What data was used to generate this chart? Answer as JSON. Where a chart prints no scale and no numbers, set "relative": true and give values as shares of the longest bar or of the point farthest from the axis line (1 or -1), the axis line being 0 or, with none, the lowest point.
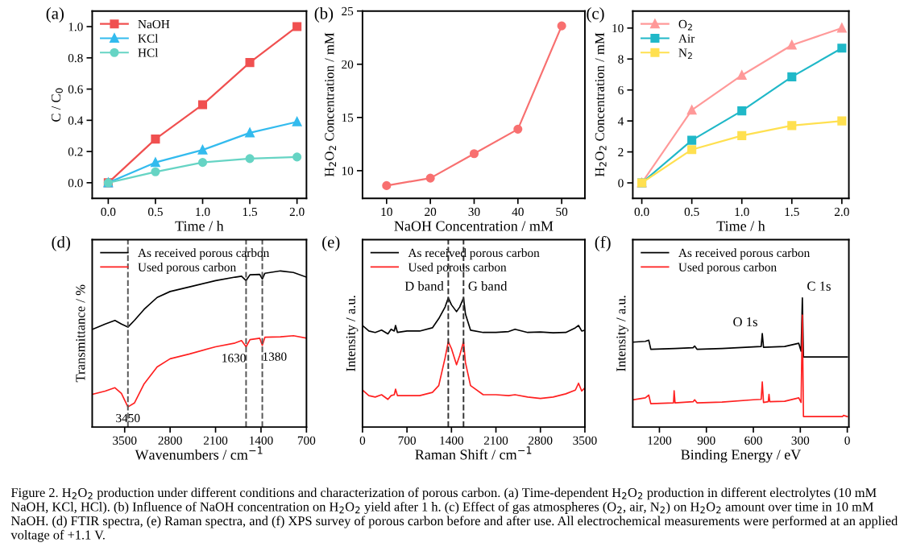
{
  "chart_data": [
    {
      "type": "line",
      "title": "(a)",
      "xlabel": "Time / h",
      "ylabel": "C / C$_{0}$",
      "x": [
        0.0,
        0.5,
        1.0,
        1.5,
        2.0
      ],
      "xlim": [
        -0.17,
        2.1
      ],
      "xticks": [
        {
          "value": 0,
          "label": "0.0"
        },
        0.5,
        {
          "value": 1,
          "label": "1.0"
        },
        1.5,
        {
          "value": 2,
          "label": "2.0"
        }
      ],
      "ylim": [
        -0.1,
        1.1
      ],
      "yticks": [
        {
          "value": 0,
          "label": "0.0"
        },
        0.2,
        0.4,
        0.6,
        0.8,
        {
          "value": 1,
          "label": "1.0"
        }
      ],
      "legend": "top left",
      "series": [
        {
          "name": "NaOH",
          "color": "#f05050",
          "marker": "square",
          "values": [
            0.0,
            0.28,
            0.5,
            0.77,
            1.0
          ]
        },
        {
          "name": "KCl",
          "color": "#33bbee",
          "marker": "triangle",
          "values": [
            0.0,
            0.13,
            0.21,
            0.32,
            0.39
          ]
        },
        {
          "name": "HCl",
          "color": "#66d4c4",
          "marker": "circle",
          "values": [
            0.0,
            0.07,
            0.13,
            0.155,
            0.165
          ]
        }
      ]
    },
    {
      "type": "line",
      "title": "(b)",
      "xlabel": "NaOH Concentration / mM",
      "ylabel": "H$_{2}$O$_{2}$ Concentration / mM",
      "x": [
        10,
        20,
        30,
        40,
        50
      ],
      "xlim": [
        4.5,
        55.3
      ],
      "xticks": [
        10,
        20,
        30,
        40,
        50
      ],
      "ylim": [
        7.4,
        25
      ],
      "yticks": [
        10,
        15,
        20,
        25
      ],
      "marker": "circle",
      "series": [
        {
          "color": "#f87070",
          "values": [
            8.6,
            9.3,
            11.6,
            13.9,
            23.6
          ]
        }
      ]
    },
    {
      "type": "line",
      "title": "(c)",
      "xlabel": "Time / h",
      "ylabel": "H$_{2}$O$_{2}$ Concentration / mM",
      "x": [
        0.0,
        0.5,
        1.0,
        1.5,
        2.0
      ],
      "xlim": [
        -0.09,
        2.07
      ],
      "xticks": [
        {
          "value": 0,
          "label": "0.0"
        },
        0.5,
        {
          "value": 1,
          "label": "1.0"
        },
        1.5,
        {
          "value": 2,
          "label": "2.0"
        }
      ],
      "ylim": [
        -1.0,
        11.1
      ],
      "yticks": [
        0,
        2,
        4,
        6,
        8,
        10
      ],
      "legend": "top left",
      "series": [
        {
          "name": "O$_{2}$",
          "color": "#ff9999",
          "marker": "triangle",
          "values": [
            0,
            4.7,
            6.95,
            8.9,
            10.0
          ]
        },
        {
          "name": "Air",
          "color": "#20b8c8",
          "marker": "square",
          "values": [
            0,
            2.75,
            4.65,
            6.85,
            8.7
          ]
        },
        {
          "name": "N$_{2}$",
          "color": "#ffe050",
          "marker": "square",
          "values": [
            0,
            2.15,
            3.05,
            3.7,
            4.0
          ]
        }
      ]
    },
    {
      "type": "line",
      "title": "(d)",
      "xlabel": "Wavenumbers / cm$^{−1}$",
      "ylabel": "Transmittance / %",
      "relative": true,
      "x": [
        4000,
        3800,
        3650,
        3550,
        3450,
        3350,
        3200,
        3000,
        2800,
        2500,
        2100,
        1800,
        1700,
        1630,
        1570,
        1420,
        1380,
        1340,
        1100,
        900,
        700
      ],
      "xlim": [
        4000,
        700
      ],
      "xticks": [
        3500,
        2800,
        2100,
        1400,
        700
      ],
      "legend": "top left",
      "series": [
        {
          "name": "As received porous carbon",
          "color": "#000000",
          "values": [
            0.625,
            0.66,
            0.683,
            0.66,
            0.64,
            0.683,
            0.754,
            0.83,
            0.868,
            0.898,
            0.938,
            0.96,
            0.966,
            0.938,
            0.975,
            0.978,
            0.948,
            0.985,
            1.0,
            0.99,
            0.96
          ]
        },
        {
          "name": "Used porous carbon",
          "color": "#ff2020",
          "values": [
            0.209,
            0.23,
            0.252,
            0.215,
            0.129,
            0.154,
            0.277,
            0.385,
            0.437,
            0.468,
            0.514,
            0.538,
            0.554,
            0.514,
            0.56,
            0.569,
            0.523,
            0.575,
            0.578,
            0.585,
            0.569
          ]
        }
      ],
      "ref_lines": [
        {
          "axis": "x",
          "value": 3450,
          "label": "3450",
          "line_style": "dashed",
          "color": "#555555"
        },
        {
          "axis": "x",
          "value": 1630,
          "label": "1630",
          "line_style": "dashed",
          "color": "#555555"
        },
        {
          "axis": "x",
          "value": 1380,
          "label": "1380",
          "line_style": "dashed",
          "color": "#555555"
        }
      ]
    },
    {
      "type": "line",
      "title": "(e)",
      "xlabel": "Raman Shift / cm$^{−1}$",
      "ylabel": "Intensity / a.u.",
      "relative": true,
      "x": [
        0,
        100,
        200,
        300,
        400,
        450,
        500,
        520,
        550,
        700,
        900,
        1100,
        1200,
        1300,
        1350,
        1400,
        1480,
        1530,
        1590,
        1620,
        1700,
        1900,
        2100,
        2300,
        2400,
        2600,
        2800,
        3000,
        3200,
        3350,
        3400,
        3450,
        3500
      ],
      "xlim": [
        0,
        3500
      ],
      "xticks": [
        0,
        700,
        1400,
        2100,
        2800,
        3500
      ],
      "legend": "top left",
      "series": [
        {
          "name": "As received porous carbon",
          "color": "#000000",
          "values": [
            0.786,
            0.743,
            0.732,
            0.75,
            0.721,
            0.757,
            0.743,
            0.786,
            0.732,
            0.743,
            0.743,
            0.768,
            0.839,
            0.929,
            1.0,
            0.946,
            0.893,
            0.929,
            1.0,
            0.875,
            0.75,
            0.732,
            0.732,
            0.739,
            0.757,
            0.732,
            0.736,
            0.729,
            0.732,
            0.768,
            0.786,
            0.743,
            0.75
          ]
        },
        {
          "name": "Used porous carbon",
          "color": "#ff2020",
          "values": [
            0.286,
            0.243,
            0.232,
            0.25,
            0.214,
            0.243,
            0.25,
            0.293,
            0.243,
            0.243,
            0.243,
            0.268,
            0.321,
            0.536,
            0.661,
            0.607,
            0.482,
            0.554,
            0.661,
            0.5,
            0.321,
            0.25,
            0.25,
            0.243,
            0.25,
            0.232,
            0.221,
            0.232,
            0.257,
            0.286,
            0.339,
            0.279,
            0.304
          ]
        }
      ],
      "ref_lines": [
        {
          "axis": "x",
          "value": 1350,
          "line_style": "dashed",
          "color": "#333333"
        },
        {
          "axis": "x",
          "value": 1590,
          "line_style": "dashed",
          "color": "#333333"
        }
      ],
      "annotations": [
        {
          "text": "D band",
          "x": 1350,
          "y": 1.0
        },
        {
          "text": "G band",
          "x": 1590,
          "y": 1.0
        }
      ]
    },
    {
      "type": "line",
      "title": "(f)",
      "xlabel": "Binding Energy / eV",
      "ylabel": "Intensity / a.u.",
      "relative": true,
      "xlim": [
        1370,
        -10
      ],
      "xticks": [
        1200,
        900,
        600,
        300,
        0
      ],
      "legend": "top left",
      "series": [
        {
          "name": "As received porous carbon",
          "color": "#000000",
          "x": [
            1370,
            1290,
            1268,
            1255,
            1100,
            985,
            975,
            960,
            800,
            600,
            550,
            543,
            535,
            400,
            310,
            295,
            287,
            280,
            150,
            0
          ],
          "values": [
            0.657,
            0.663,
            0.672,
            0.602,
            0.608,
            0.614,
            0.627,
            0.602,
            0.608,
            0.62,
            0.623,
            0.723,
            0.617,
            0.623,
            0.648,
            0.587,
            1.0,
            0.542,
            0.542,
            0.542
          ]
        },
        {
          "name": "Used porous carbon",
          "color": "#ff2020",
          "x": [
            1370,
            1290,
            1268,
            1255,
            1110,
            1106,
            1100,
            985,
            975,
            960,
            800,
            600,
            550,
            543,
            535,
            505,
            500,
            495,
            400,
            310,
            295,
            287,
            280,
            150,
            30,
            25,
            0
          ],
          "values": [
            0.211,
            0.226,
            0.247,
            0.181,
            0.187,
            0.28,
            0.187,
            0.196,
            0.211,
            0.187,
            0.193,
            0.211,
            0.214,
            0.349,
            0.19,
            0.196,
            0.253,
            0.196,
            0.199,
            0.226,
            0.19,
            0.867,
            0.081,
            0.081,
            0.081,
            0.09,
            0.081
          ]
        }
      ],
      "annotations": [
        {
          "text": "O 1s",
          "x": 543,
          "y": 0.723
        },
        {
          "text": "C 1s",
          "x": 287,
          "y": 1.0
        },
        "Figure 2. H$_{2}$O$_{2}$ production under different conditions and characterization of porous carbon. (a) Time-dependent H$_{2}$O$_{2}$ production in different electrolytes (10 mM NaOH, KCl, HCl). (b) Influence of NaOH concentration on H$_{2}$O$_{2}$ yield after 1 h. (c) Effect of gas atmospheres (O$_{2}$, air, N$_{2}$) on H$_{2}$O$_{2}$ amount over time in 10 mM NaOH. (d) FTIR spectra, (e) Raman spectra, and (f) XPS survey of porous carbon before and after use. All electrochemical measurements were performed at an applied voltage of +1.1 V."
      ]
    }
  ]
}
